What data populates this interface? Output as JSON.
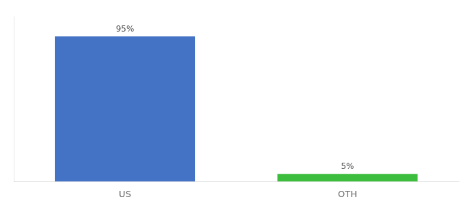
{
  "chart_data": {
    "type": "bar",
    "categories": [
      "US",
      "OTH"
    ],
    "values": [
      95,
      5
    ],
    "value_labels": [
      "95%",
      "5%"
    ],
    "data_labels": true,
    "colors": [
      "#4472C4",
      "#3DBD3D"
    ],
    "ylim": [
      0,
      108
    ],
    "tick_labels": "x",
    "grid": false
  }
}
